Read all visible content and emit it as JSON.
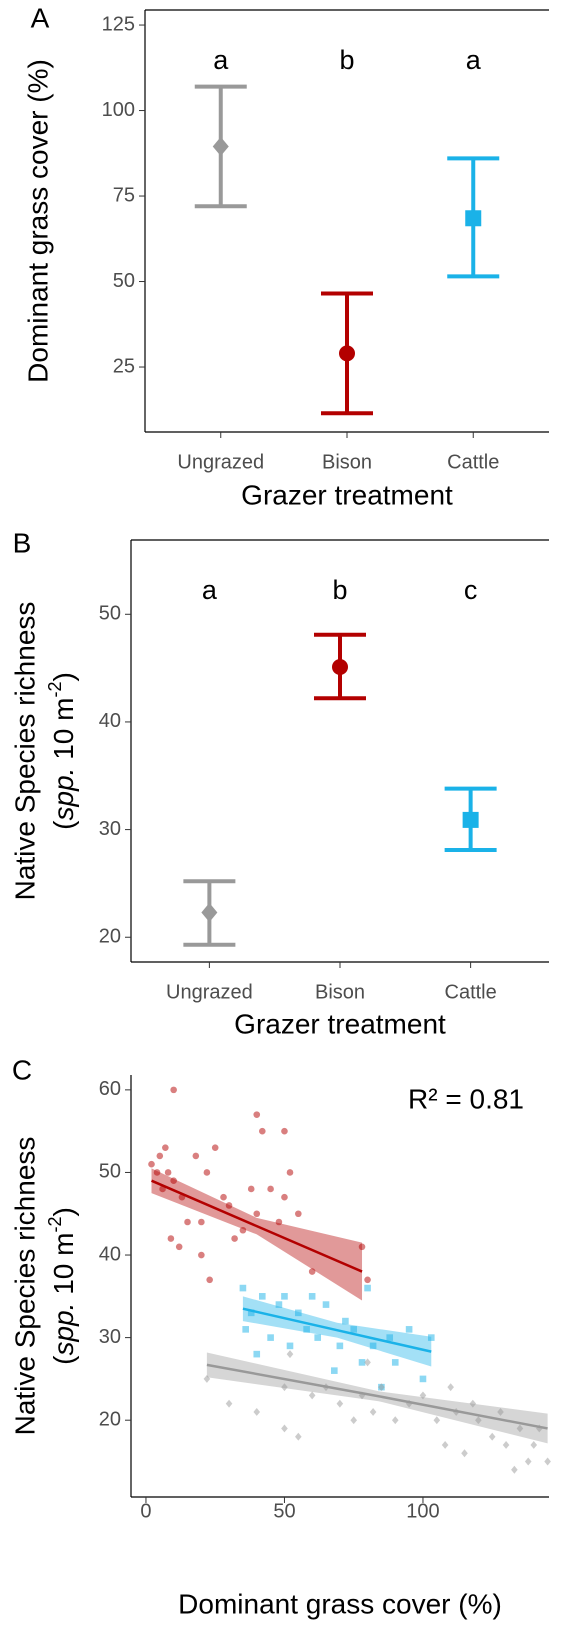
{
  "chart_data": [
    {
      "type": "errorbar",
      "panel_label": "A",
      "xlabel": "Grazer treatment",
      "ylabel": "Dominant grass cover (%)",
      "categories": [
        "Ungrazed",
        "Bison",
        "Cattle"
      ],
      "values": [
        89.5,
        29,
        68.5
      ],
      "lower": [
        72,
        11.5,
        51.5
      ],
      "upper": [
        107,
        46.5,
        86
      ],
      "letters": [
        "a",
        "b",
        "a"
      ],
      "colors": [
        "#999999",
        "#b30000",
        "#1ab2e8"
      ],
      "markers": [
        "diamond",
        "circle",
        "square"
      ],
      "ylim": [
        6,
        129.4
      ],
      "yticks": [
        25,
        50,
        75,
        100,
        125
      ]
    },
    {
      "type": "errorbar",
      "panel_label": "B",
      "xlabel": "Grazer treatment",
      "ylabel": "Native Species richness",
      "ylabel_units": [
        "(",
        "spp.",
        " 10 m",
        "-2",
        ")"
      ],
      "categories": [
        "Ungrazed",
        "Bison",
        "Cattle"
      ],
      "values": [
        22.3,
        45.1,
        30.9
      ],
      "lower": [
        19.3,
        42.2,
        28.1
      ],
      "upper": [
        25.2,
        48.1,
        33.8
      ],
      "letters": [
        "a",
        "b",
        "c"
      ],
      "colors": [
        "#999999",
        "#b30000",
        "#1ab2e8"
      ],
      "markers": [
        "diamond",
        "circle",
        "square"
      ],
      "ylim": [
        17.7,
        56.9
      ],
      "yticks": [
        20,
        30,
        40,
        50
      ]
    },
    {
      "type": "scatter",
      "panel_label": "C",
      "xlabel": "Dominant grass cover (%)",
      "ylabel": "Native Species richness",
      "ylabel_units": [
        "(",
        "spp.",
        " 10 m",
        "-2",
        ")"
      ],
      "annotation": "R² = 0.81",
      "series": [
        {
          "color": "#b30000",
          "marker": "circle",
          "x": [
            2,
            4,
            5,
            6,
            7,
            8,
            9,
            10,
            10,
            12,
            13,
            15,
            18,
            20,
            20,
            22,
            23,
            25,
            28,
            30,
            32,
            35,
            38,
            40,
            40,
            42,
            45,
            48,
            50,
            50,
            52,
            55,
            60,
            78,
            80
          ],
          "y": [
            51,
            50,
            52,
            48,
            53,
            50,
            42,
            60,
            49,
            41,
            47,
            44,
            52,
            44,
            40,
            50,
            37,
            53,
            47,
            46,
            42,
            43,
            48,
            57,
            45,
            55,
            48,
            44,
            55,
            47,
            50,
            45,
            38,
            41,
            37
          ],
          "fit": {
            "x": [
              2,
              40,
              78
            ],
            "y": [
              49,
              43.5,
              38
            ],
            "lower": [
              47.5,
              42.5,
              34.5
            ],
            "upper": [
              50.5,
              44.5,
              41.5
            ]
          }
        },
        {
          "color": "#1ab2e8",
          "marker": "square",
          "x": [
            35,
            36,
            38,
            40,
            42,
            45,
            48,
            50,
            52,
            55,
            58,
            60,
            62,
            65,
            68,
            70,
            72,
            75,
            78,
            80,
            82,
            85,
            88,
            90,
            95,
            100,
            103
          ],
          "y": [
            36,
            31,
            33,
            28,
            35,
            30,
            34,
            35,
            29,
            33,
            31,
            35,
            30,
            34,
            26,
            29,
            32,
            31,
            27,
            36,
            29,
            24,
            30,
            27,
            31,
            25,
            30
          ],
          "fit": {
            "x": [
              35,
              69,
              103
            ],
            "y": [
              33.5,
              30.9,
              28.3
            ],
            "lower": [
              32,
              30,
              26.5
            ],
            "upper": [
              35,
              31.8,
              30.1
            ]
          }
        },
        {
          "color": "#999999",
          "marker": "diamond",
          "x": [
            22,
            30,
            40,
            50,
            50,
            52,
            55,
            60,
            65,
            70,
            75,
            78,
            80,
            82,
            85,
            90,
            95,
            100,
            105,
            108,
            110,
            112,
            115,
            118,
            120,
            125,
            128,
            130,
            133,
            135,
            138,
            140,
            142,
            145
          ],
          "y": [
            25,
            22,
            21,
            19,
            24,
            28,
            18,
            23,
            24,
            22,
            20,
            23,
            27,
            21,
            24,
            20,
            22,
            23,
            20,
            17,
            24,
            21,
            16,
            22,
            20,
            18,
            21,
            17,
            14,
            19,
            15,
            17,
            19,
            15
          ],
          "fit": {
            "x": [
              22,
              84,
              145
            ],
            "y": [
              26.7,
              22.9,
              19
            ],
            "lower": [
              25.2,
              22.3,
              17.2
            ],
            "upper": [
              28.2,
              23.5,
              20.8
            ]
          }
        }
      ],
      "xlim": [
        -5.4,
        145.5
      ],
      "xticks": [
        0,
        50,
        100
      ],
      "ylim": [
        10.7,
        61.8
      ],
      "yticks": [
        20,
        30,
        40,
        50,
        60
      ]
    }
  ]
}
